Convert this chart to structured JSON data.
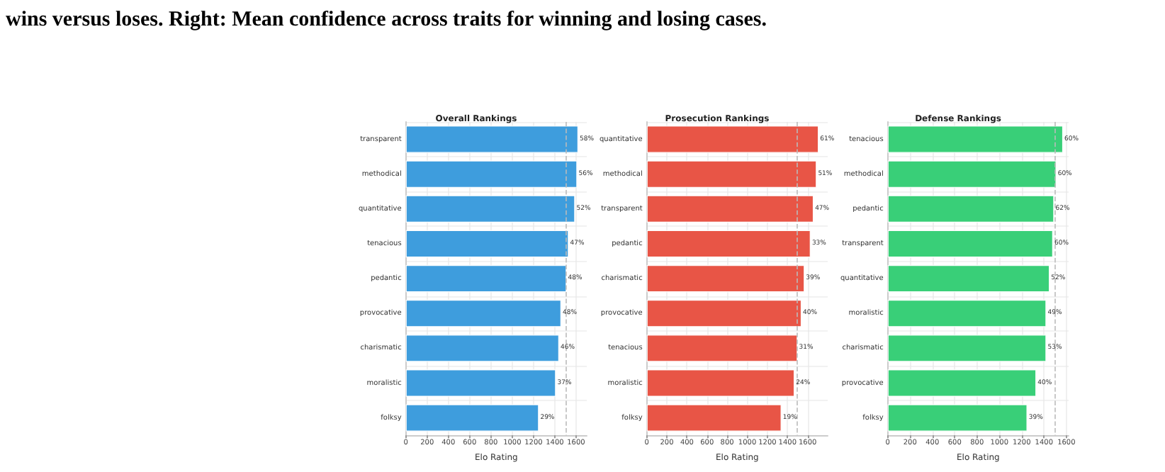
{
  "chart_data": [
    {
      "type": "bar",
      "orientation": "horizontal",
      "title": "Overall Rankings",
      "xlabel": "Elo Rating",
      "categories": [
        "transparent",
        "methodical",
        "quantitative",
        "tenacious",
        "pedantic",
        "provocative",
        "charismatic",
        "moralistic",
        "folksy"
      ],
      "series": [
        {
          "color": "#3498db",
          "values": [
            1620,
            1610,
            1590,
            1530,
            1510,
            1460,
            1440,
            1410,
            1250
          ]
        }
      ],
      "annotations": [
        "wins versus loses. Right: Mean confidence across traits for winning and losing cases.",
        {
          "text": "58%",
          "x": 1620,
          "y": "transparent"
        },
        {
          "text": "56%",
          "x": 1610,
          "y": "methodical"
        },
        {
          "text": "52%",
          "x": 1590,
          "y": "quantitative"
        },
        {
          "text": "47%",
          "x": 1530,
          "y": "tenacious"
        },
        {
          "text": "48%",
          "x": 1510,
          "y": "pedantic"
        },
        {
          "text": "48%",
          "x": 1460,
          "y": "provocative"
        },
        {
          "text": "46%",
          "x": 1440,
          "y": "charismatic"
        },
        {
          "text": "37%",
          "x": 1410,
          "y": "moralistic"
        },
        {
          "text": "29%",
          "x": 1250,
          "y": "folksy"
        }
      ],
      "xlim": [
        0,
        1700
      ],
      "xticks": [
        0,
        200,
        400,
        600,
        800,
        1000,
        1200,
        1400,
        1600
      ],
      "grid": true,
      "ref_lines": [
        {
          "axis": "x",
          "value": 1500,
          "color": "#bbbbbb",
          "line_style": "dashed"
        }
      ]
    },
    {
      "type": "bar",
      "orientation": "horizontal",
      "title": "Prosecution Rankings",
      "xlabel": "Elo Rating",
      "categories": [
        "quantitative",
        "methodical",
        "transparent",
        "pedantic",
        "charismatic",
        "provocative",
        "tenacious",
        "moralistic",
        "folksy"
      ],
      "series": [
        {
          "color": "#e74c3c",
          "values": [
            1710,
            1690,
            1660,
            1630,
            1570,
            1540,
            1500,
            1470,
            1340
          ]
        }
      ],
      "annotations": [
        {
          "text": "61%",
          "x": 1710,
          "y": "quantitative"
        },
        {
          "text": "51%",
          "x": 1690,
          "y": "methodical"
        },
        {
          "text": "47%",
          "x": 1660,
          "y": "transparent"
        },
        {
          "text": "33%",
          "x": 1630,
          "y": "pedantic"
        },
        {
          "text": "39%",
          "x": 1570,
          "y": "charismatic"
        },
        {
          "text": "40%",
          "x": 1540,
          "y": "provocative"
        },
        {
          "text": "31%",
          "x": 1500,
          "y": "tenacious"
        },
        {
          "text": "24%",
          "x": 1470,
          "y": "moralistic"
        },
        {
          "text": "19%",
          "x": 1340,
          "y": "folksy"
        }
      ],
      "xlim": [
        0,
        1800
      ],
      "xticks": [
        0,
        200,
        400,
        600,
        800,
        1000,
        1200,
        1400,
        1600
      ],
      "grid": true,
      "ref_lines": [
        {
          "axis": "x",
          "value": 1500,
          "color": "#bbbbbb",
          "line_style": "dashed"
        }
      ]
    },
    {
      "type": "bar",
      "orientation": "horizontal",
      "title": "Defense Rankings",
      "xlabel": "Elo Rating",
      "categories": [
        "tenacious",
        "methodical",
        "pedantic",
        "transparent",
        "quantitative",
        "moralistic",
        "charismatic",
        "provocative",
        "folksy"
      ],
      "series": [
        {
          "color": "#2ecc71",
          "values": [
            1570,
            1510,
            1490,
            1480,
            1450,
            1420,
            1420,
            1330,
            1250
          ]
        }
      ],
      "annotations": [
        {
          "text": "60%",
          "x": 1570,
          "y": "tenacious"
        },
        {
          "text": "60%",
          "x": 1510,
          "y": "methodical"
        },
        {
          "text": "62%",
          "x": 1490,
          "y": "pedantic"
        },
        {
          "text": "60%",
          "x": 1480,
          "y": "transparent"
        },
        {
          "text": "52%",
          "x": 1450,
          "y": "quantitative"
        },
        {
          "text": "49%",
          "x": 1420,
          "y": "moralistic"
        },
        {
          "text": "53%",
          "x": 1420,
          "y": "charismatic"
        },
        {
          "text": "40%",
          "x": 1330,
          "y": "provocative"
        },
        {
          "text": "39%",
          "x": 1250,
          "y": "folksy"
        }
      ],
      "xlim": [
        0,
        1620
      ],
      "xticks": [
        0,
        200,
        400,
        600,
        800,
        1000,
        1200,
        1400,
        1600
      ],
      "grid": true,
      "ref_lines": [
        {
          "axis": "x",
          "value": 1500,
          "color": "#bbbbbb",
          "line_style": "dashed"
        }
      ]
    }
  ]
}
